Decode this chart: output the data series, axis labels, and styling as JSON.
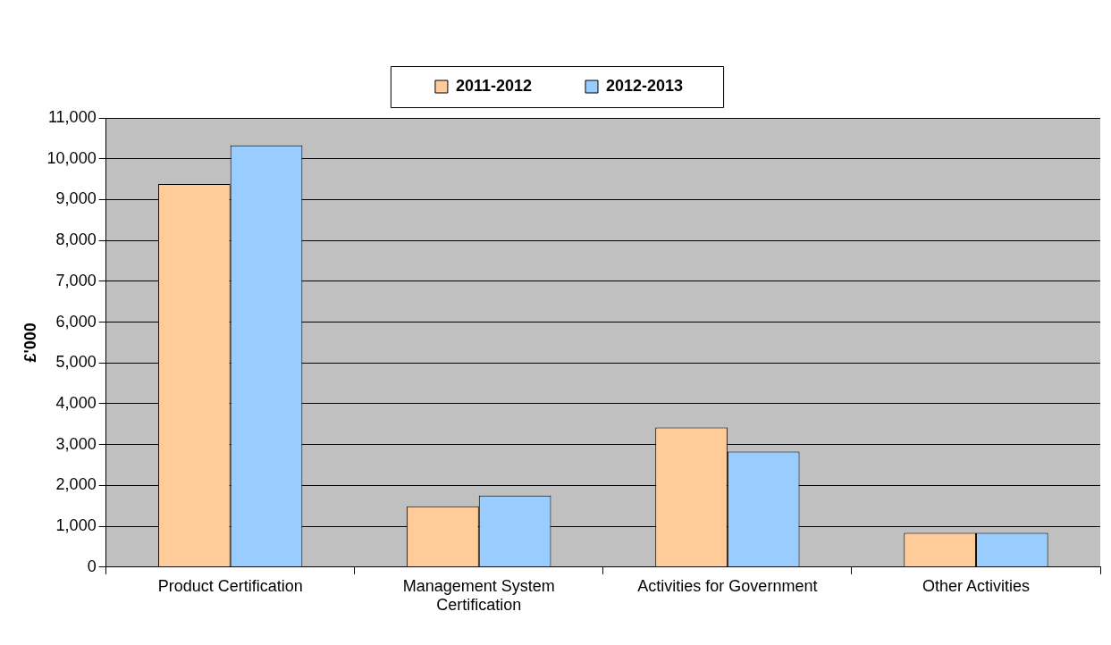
{
  "chart_data": {
    "type": "bar",
    "ylabel": "£'000",
    "categories": [
      "Product Certification",
      "Management System Certification",
      "Activities for Government",
      "Other Activities"
    ],
    "series": [
      {
        "name": "2011-2012",
        "color": "#ffcc99",
        "values": [
          9380,
          1490,
          3420,
          840
        ]
      },
      {
        "name": "2012-2013",
        "color": "#99ccff",
        "values": [
          10330,
          1750,
          2830,
          840
        ]
      }
    ],
    "ylim": [
      0,
      11000
    ],
    "yticks": [
      0,
      {
        "value": 1000,
        "label": "1,000"
      },
      {
        "value": 2000,
        "label": "2,000"
      },
      {
        "value": 3000,
        "label": "3,000"
      },
      {
        "value": 4000,
        "label": "4,000"
      },
      {
        "value": 5000,
        "label": "5,000"
      },
      {
        "value": 6000,
        "label": "6,000"
      },
      {
        "value": 7000,
        "label": "7,000"
      },
      {
        "value": 8000,
        "label": "8,000"
      },
      {
        "value": 9000,
        "label": "9,000"
      },
      {
        "value": 10000,
        "label": "10,000"
      },
      {
        "value": 11000,
        "label": "11,000"
      }
    ],
    "grid": "y",
    "legend": "top"
  }
}
